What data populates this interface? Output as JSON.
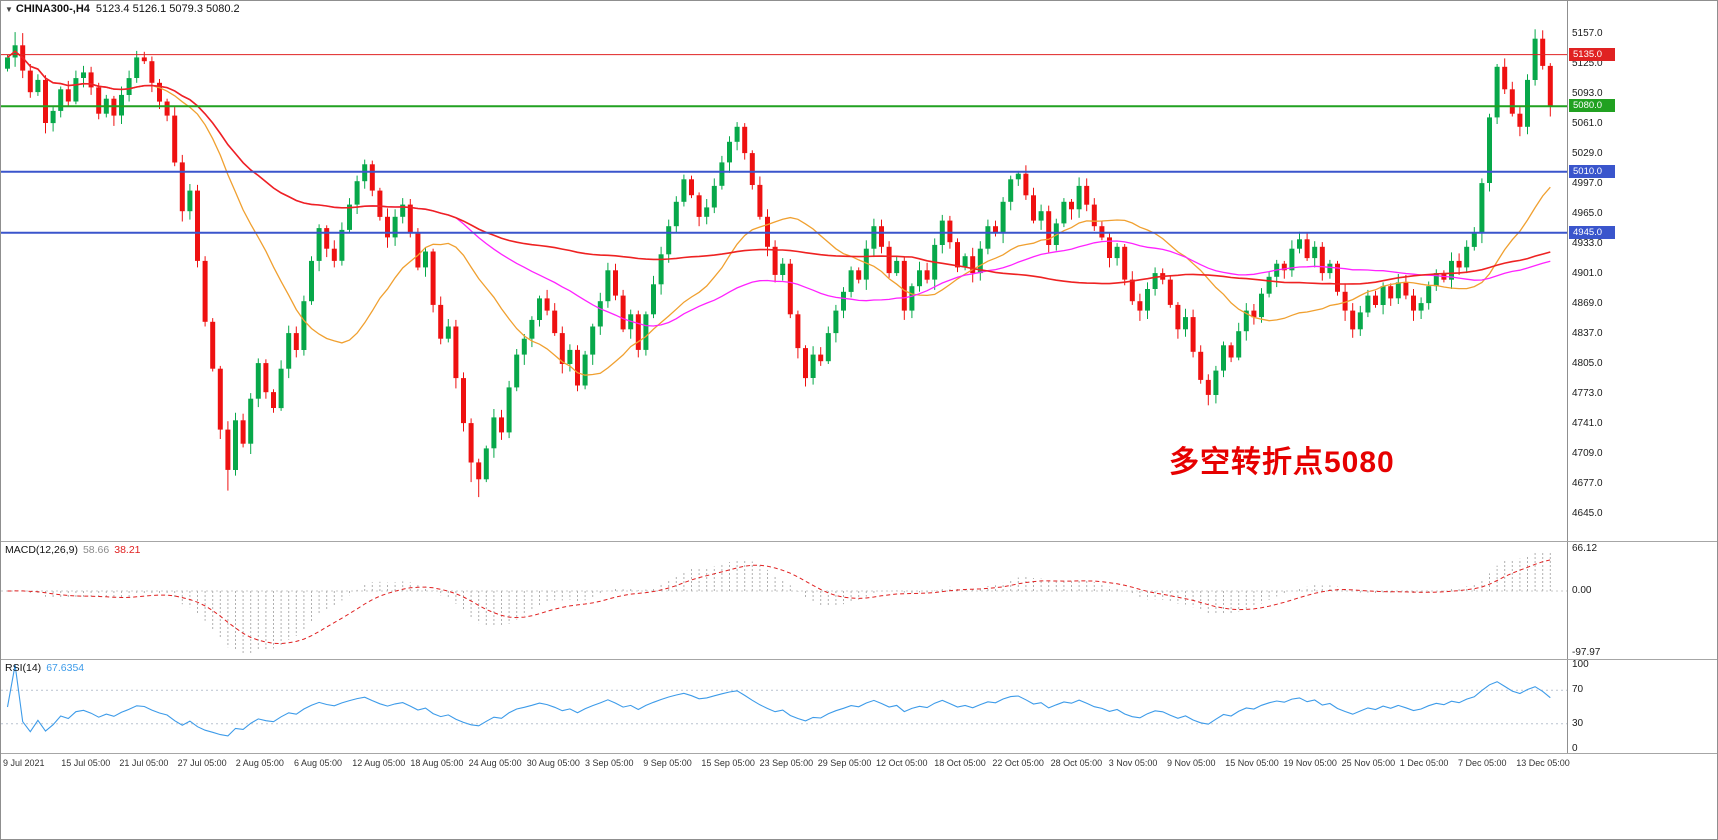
{
  "symbol_bar": {
    "arrow": "▼",
    "symbol": "CHINA300-,H4",
    "ohlc": "5123.4 5126.1 5079.3 5080.2"
  },
  "annotation": {
    "text": "多空转折点5080",
    "color": "#e60000"
  },
  "panels": {
    "macd": {
      "label": "MACD(12,26,9)",
      "value_main": "58.66",
      "value_signal": "38.21"
    },
    "rsi": {
      "label": "RSI(14)",
      "value": "67.6354"
    }
  },
  "colors": {
    "up": "#07a84a",
    "down": "#ee1111",
    "macd_hist": "#b0b0b0",
    "macd_hist_text": "#8a8a8a",
    "macd_signal": "#e02020",
    "rsi_line": "#3d9be9",
    "level_line": "#b9c2cf"
  },
  "chart_data": {
    "type": "candlestick",
    "title": "CHINA300-,H4",
    "timeframe": "H4",
    "ohlc_readout": {
      "open": 5123.4,
      "high": 5126.1,
      "low": 5079.3,
      "close": 5080.2
    },
    "first_open": 5120,
    "closes": [
      5132,
      5145,
      5118,
      5095,
      5108,
      5062,
      5075,
      5098,
      5085,
      5110,
      5116,
      5100,
      5072,
      5088,
      5070,
      5092,
      5110,
      5132,
      5128,
      5105,
      5085,
      5070,
      5020,
      4968,
      4990,
      4915,
      4850,
      4800,
      4735,
      4692,
      4745,
      4720,
      4768,
      4806,
      4775,
      4758,
      4800,
      4838,
      4820,
      4872,
      4915,
      4950,
      4928,
      4915,
      4948,
      4975,
      5000,
      5018,
      4990,
      4962,
      4940,
      4962,
      4975,
      4945,
      4908,
      4925,
      4868,
      4832,
      4845,
      4790,
      4742,
      4700,
      4682,
      4715,
      4748,
      4732,
      4780,
      4815,
      4832,
      4852,
      4875,
      4862,
      4838,
      4805,
      4820,
      4782,
      4815,
      4845,
      4872,
      4905,
      4878,
      4842,
      4858,
      4820,
      4858,
      4890,
      4922,
      4952,
      4978,
      5002,
      4985,
      4962,
      4972,
      4995,
      5020,
      5042,
      5058,
      5030,
      4996,
      4962,
      4930,
      4900,
      4912,
      4858,
      4822,
      4790,
      4815,
      4808,
      4838,
      4862,
      4882,
      4905,
      4895,
      4928,
      4952,
      4930,
      4902,
      4915,
      4862,
      4888,
      4905,
      4895,
      4932,
      4958,
      4935,
      4908,
      4920,
      4902,
      4928,
      4952,
      4945,
      4978,
      5002,
      5008,
      4985,
      4958,
      4968,
      4932,
      4955,
      4978,
      4970,
      4995,
      4975,
      4952,
      4940,
      4918,
      4930,
      4895,
      4872,
      4862,
      4885,
      4902,
      4895,
      4868,
      4842,
      4855,
      4818,
      4788,
      4772,
      4798,
      4825,
      4812,
      4840,
      4862,
      4855,
      4880,
      4898,
      4912,
      4905,
      4928,
      4938,
      4918,
      4930,
      4902,
      4912,
      4882,
      4862,
      4842,
      4860,
      4878,
      4868,
      4888,
      4875,
      4892,
      4878,
      4862,
      4870,
      4888,
      4902,
      4895,
      4915,
      4908,
      4930,
      4945,
      4998,
      5068,
      5122,
      5098,
      5072,
      5058,
      5108,
      5152,
      5123,
      5080
    ],
    "moving_averages": [
      {
        "name": "MA fast",
        "period": 20,
        "color": "#f0a030",
        "width": 1.3
      },
      {
        "name": "MA mid",
        "period": 60,
        "color": "#ff22ff",
        "width": 1.3
      },
      {
        "name": "MA slow",
        "period": 120,
        "color": "#ee2222",
        "width": 1.6
      }
    ],
    "hlines": [
      {
        "price": 5135,
        "color": "#e02222",
        "width": 1
      },
      {
        "price": 5080,
        "color": "#21a121",
        "width": 2
      },
      {
        "price": 5010,
        "color": "#3a55cc",
        "width": 2
      },
      {
        "price": 4945,
        "color": "#3a55cc",
        "width": 2
      }
    ],
    "price_axis": {
      "ticks": [
        5157,
        5125,
        5093,
        5061,
        5029,
        4997,
        4965,
        4933,
        4901,
        4869,
        4837,
        4805,
        4773,
        4741,
        4709,
        4677,
        4645
      ]
    },
    "macd": {
      "params": [
        12,
        26,
        9
      ],
      "axis_ticks": [
        66.12,
        0,
        -97.97
      ],
      "last_main": 58.66,
      "last_signal": 38.21
    },
    "rsi": {
      "period": 14,
      "axis_ticks": [
        100,
        70,
        30,
        0
      ],
      "levels": [
        70,
        30
      ],
      "last": 67.6354
    },
    "time_labels": [
      "9 Jul 2021",
      "15 Jul 05:00",
      "21 Jul 05:00",
      "27 Jul 05:00",
      "2 Aug 05:00",
      "6 Aug 05:00",
      "12 Aug 05:00",
      "18 Aug 05:00",
      "24 Aug 05:00",
      "30 Aug 05:00",
      "3 Sep 05:00",
      "9 Sep 05:00",
      "15 Sep 05:00",
      "23 Sep 05:00",
      "29 Sep 05:00",
      "12 Oct 05:00",
      "18 Oct 05:00",
      "22 Oct 05:00",
      "28 Oct 05:00",
      "3 Nov 05:00",
      "9 Nov 05:00",
      "15 Nov 05:00",
      "19 Nov 05:00",
      "25 Nov 05:00",
      "1 Dec 05:00",
      "7 Dec 05:00",
      "13 Dec 05:00"
    ]
  }
}
